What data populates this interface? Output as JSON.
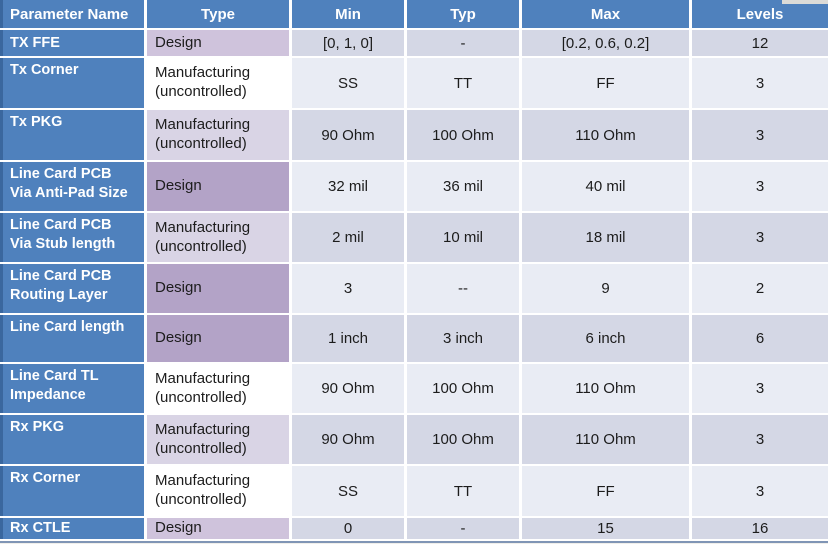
{
  "table": {
    "headers": {
      "parameter": "Parameter Name",
      "type": "Type",
      "min": "Min",
      "typ": "Typ",
      "max": "Max",
      "levels": "Levels"
    },
    "rows": [
      {
        "param": "TX FFE",
        "type": "Design",
        "min": "[0, 1, 0]",
        "typ": "-",
        "max": "[0.2, 0.6, 0.2]",
        "levels": "12"
      },
      {
        "param": "Tx Corner",
        "type": "Manufacturing (uncontrolled)",
        "min": "SS",
        "typ": "TT",
        "max": "FF",
        "levels": "3"
      },
      {
        "param": "Tx PKG",
        "type": "Manufacturing (uncontrolled)",
        "min": "90 Ohm",
        "typ": "100 Ohm",
        "max": "110 Ohm",
        "levels": "3"
      },
      {
        "param": "Line Card PCB Via Anti-Pad Size",
        "type": "Design",
        "min": "32 mil",
        "typ": "36 mil",
        "max": "40 mil",
        "levels": "3"
      },
      {
        "param": "Line Card PCB Via Stub length",
        "type": "Manufacturing (uncontrolled)",
        "min": "2 mil",
        "typ": "10 mil",
        "max": "18 mil",
        "levels": "3"
      },
      {
        "param": "Line Card PCB Routing Layer",
        "type": "Design",
        "min": "3",
        "typ": "--",
        "max": "9",
        "levels": "2"
      },
      {
        "param": "Line Card length",
        "type": "Design",
        "min": "1 inch",
        "typ": "3 inch",
        "max": "6 inch",
        "levels": "6"
      },
      {
        "param": "Line Card TL Impedance",
        "type": "Manufacturing (uncontrolled)",
        "min": "90 Ohm",
        "typ": "100 Ohm",
        "max": "110 Ohm",
        "levels": "3"
      },
      {
        "param": "Rx PKG",
        "type": "Manufacturing (uncontrolled)",
        "min": "90 Ohm",
        "typ": "100 Ohm",
        "max": "110 Ohm",
        "levels": "3"
      },
      {
        "param": "Rx Corner",
        "type": "Manufacturing (uncontrolled)",
        "min": "SS",
        "typ": "TT",
        "max": "FF",
        "levels": "3"
      },
      {
        "param": "Rx CTLE",
        "type": "Design",
        "min": "0",
        "typ": "-",
        "max": "15",
        "levels": "16"
      }
    ]
  },
  "colors": {
    "header_blue": "#4f81bd",
    "label_column_blue": "#4f81bd",
    "label_left_edge_blue": "#3a679e",
    "band_dark_lavender": "#d4d7e5",
    "band_light_lavender": "#e9ecf4",
    "design_light_purple": "#cfc3dc",
    "design_dark_purple": "#b3a3c7",
    "manufacturing_lavender": "#d9d4e5",
    "manufacturing_white": "#ffffff",
    "cell_gap_white": "#ffffff",
    "bottom_rule_blue": "#8095b5",
    "header_text": "#ffffff",
    "body_text": "#1c1c1c"
  }
}
